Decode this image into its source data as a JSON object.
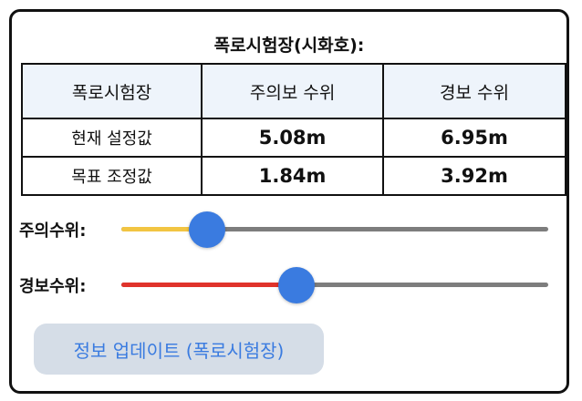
{
  "title": "폭로시험장(시화호):",
  "table": {
    "headers": [
      "폭로시험장",
      "주의보 수위",
      "경보 수위"
    ],
    "rows": [
      {
        "label": "현재 설정값",
        "caution": "5.08m",
        "warning": "6.95m"
      },
      {
        "label": "목표 조정값",
        "caution": "1.84m",
        "warning": "3.92m"
      }
    ]
  },
  "sliders": {
    "caution": {
      "label": "주의수위:",
      "value_fraction": 0.2,
      "fill_color": "#f2c542"
    },
    "warning": {
      "label": "경보수위:",
      "value_fraction": 0.41,
      "fill_color": "#e0332b"
    }
  },
  "update_button": {
    "label": "정보 업데이트 (폭로시험장)"
  },
  "colors": {
    "accent": "#3a7be0",
    "track": "#7d7d7d",
    "header_bg": "#eef4fb",
    "button_bg": "#d5dde7"
  }
}
